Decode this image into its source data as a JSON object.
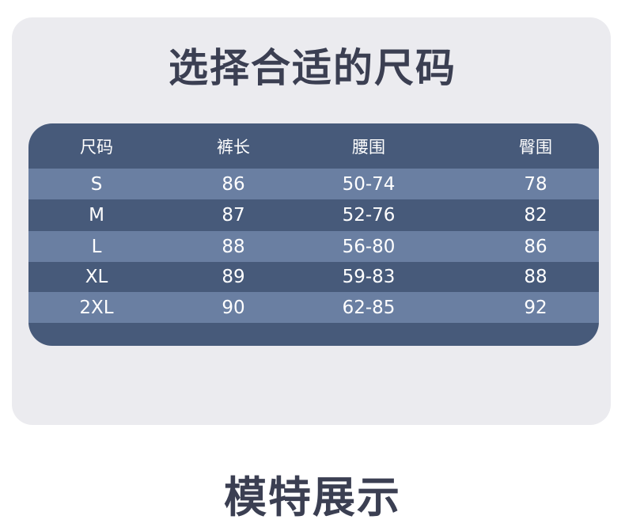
{
  "title": "选择合适的尺码",
  "table": {
    "headers": [
      "尺码",
      "裤长",
      "腰围",
      "臀围"
    ],
    "rows": [
      [
        "S",
        "86",
        "50-74",
        "78"
      ],
      [
        "M",
        "87",
        "52-76",
        "82"
      ],
      [
        "L",
        "88",
        "56-80",
        "86"
      ],
      [
        "XL",
        "89",
        "59-83",
        "88"
      ],
      [
        "2XL",
        "90",
        "62-85",
        "92"
      ]
    ]
  },
  "colors": {
    "header_row": "#475a7a",
    "light_row": "#6a7fa2",
    "card": "#ebebef",
    "title": "#3b3f52"
  },
  "section_title": "模特展示"
}
